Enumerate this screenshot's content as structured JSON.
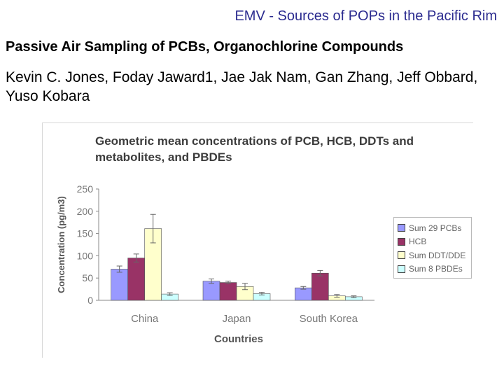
{
  "slide": {
    "header": "EMV - Sources of POPs in the Pacific Rim",
    "subtitle": "Passive Air Sampling of PCBs, Organochlorine Compounds",
    "authors": "Kevin C. Jones, Foday Jaward1, Jae Jak Nam, Gan Zhang, Jeff Obbard, Yuso Kobara"
  },
  "chart_data": {
    "type": "bar",
    "title": "Geometric mean concentrations of PCB, HCB, DDTs and metabolites, and PBDEs",
    "xlabel": "Countries",
    "ylabel": "Concentration (pg/m3)",
    "ylim": [
      0,
      250
    ],
    "yticks": [
      0,
      50,
      100,
      150,
      200,
      250
    ],
    "categories": [
      "China",
      "Japan",
      "South Korea"
    ],
    "series": [
      {
        "name": "Sum 29 PCBs",
        "values": [
          70,
          43,
          28
        ],
        "errors": [
          7,
          5,
          3
        ],
        "color": "#9999ff"
      },
      {
        "name": "HCB",
        "values": [
          95,
          40,
          61
        ],
        "errors": [
          9,
          3,
          6
        ],
        "color": "#993366"
      },
      {
        "name": "Sum DDT/DDE",
        "values": [
          161,
          31,
          10
        ],
        "errors": [
          32,
          7,
          3
        ],
        "color": "#ffffcc"
      },
      {
        "name": "Sum 8 PBDEs",
        "values": [
          14,
          15,
          8
        ],
        "errors": [
          3,
          3,
          2
        ],
        "color": "#ccffff"
      }
    ],
    "grid": false,
    "legend_position": "right"
  }
}
